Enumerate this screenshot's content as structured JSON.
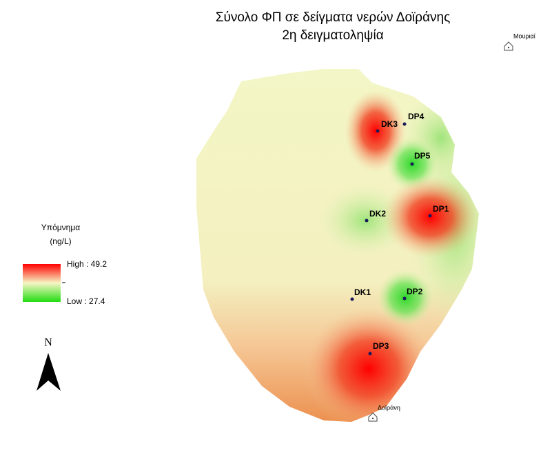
{
  "title": {
    "line1": "Σύνολο ΦΠ σε δείγματα νερών Δοϊράνης",
    "line2": "2η δειγματοληψία"
  },
  "legend": {
    "title": "Υπόμνημα",
    "unit": "(ng/L)",
    "high": "High : 49.2",
    "low": "Low : 27.4"
  },
  "north_label": "N",
  "points": [
    "DK3",
    "DP4",
    "DP5",
    "DK2",
    "DP1",
    "DK1",
    "DP2",
    "DP3"
  ],
  "towns": [
    "Μουριαί",
    "Δοϊράνη"
  ]
}
